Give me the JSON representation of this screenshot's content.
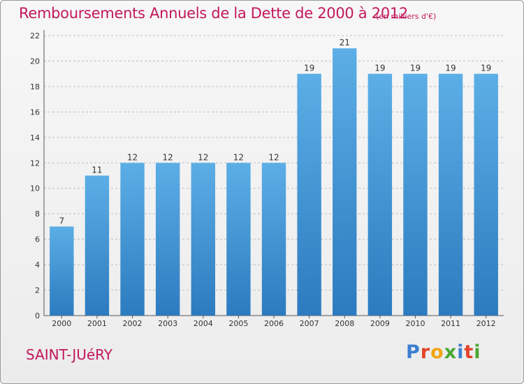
{
  "title": "Remboursements Annuels de la Dette de 2000 à 2012",
  "subtitle": "(en milliers d'€)",
  "commune": "SAINT-JUéRY",
  "logo": {
    "letters": [
      "P",
      "r",
      "o",
      "x",
      "i",
      "t",
      "i"
    ],
    "colors": [
      "#3b7fd1",
      "#e2432b",
      "#f2a515",
      "#4aa832",
      "#3b7fd1",
      "#e2432b",
      "#4aa832"
    ]
  },
  "colors": {
    "title": "#c2185b",
    "bar_top": "#5caee6",
    "bar_bottom": "#2c7bbf"
  },
  "chart_data": {
    "type": "bar",
    "categories": [
      "2000",
      "2001",
      "2002",
      "2003",
      "2004",
      "2005",
      "2006",
      "2007",
      "2008",
      "2009",
      "2010",
      "2011",
      "2012"
    ],
    "values": [
      7,
      11,
      12,
      12,
      12,
      12,
      12,
      19,
      21,
      19,
      19,
      19,
      19
    ],
    "data_labels": [
      "7",
      "11",
      "12",
      "12",
      "12",
      "12",
      "12",
      "19",
      "21",
      "19",
      "19",
      "19",
      "19"
    ],
    "title": "Remboursements Annuels de la Dette de 2000 à 2012",
    "xlabel": "",
    "ylabel": "",
    "ylim": [
      0,
      22
    ],
    "yticks": [
      0,
      2,
      4,
      6,
      8,
      10,
      12,
      14,
      16,
      18,
      20,
      22
    ],
    "grid": true
  }
}
